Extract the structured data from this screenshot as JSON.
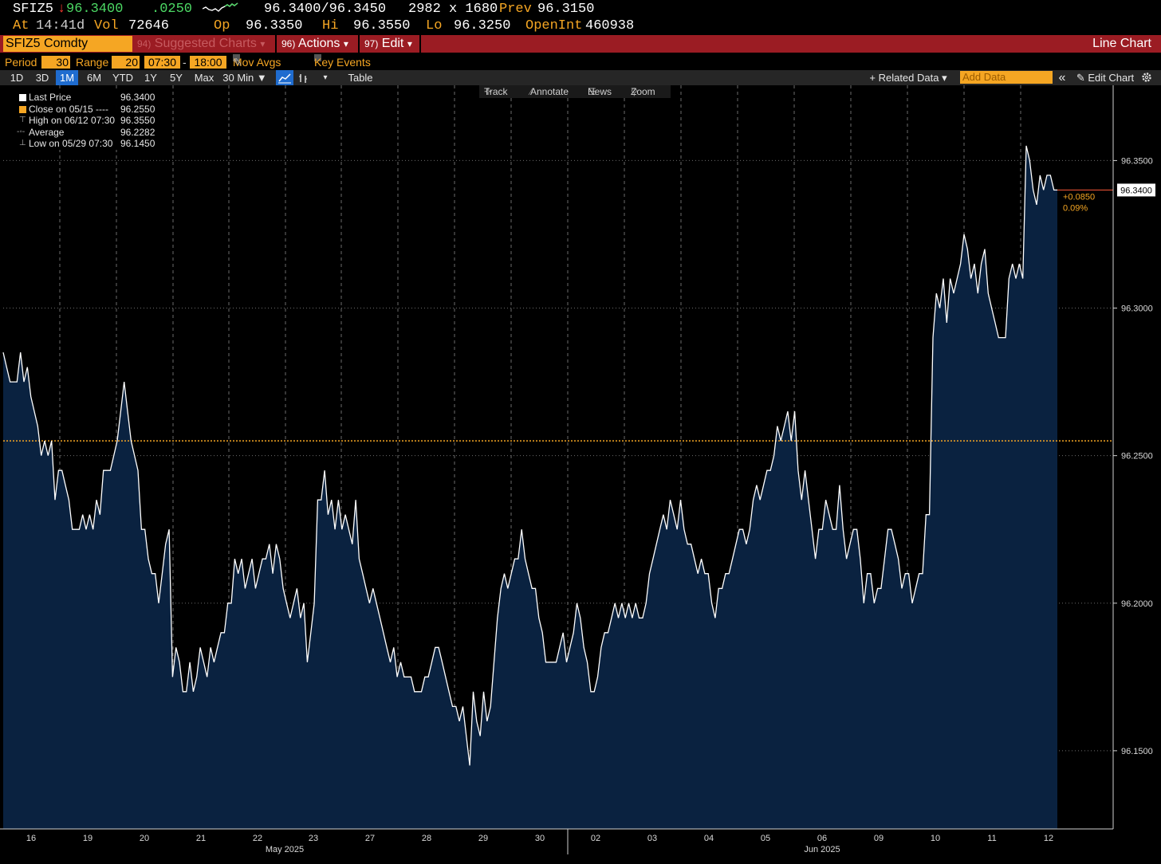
{
  "quote": {
    "ticker": "SFIZ5",
    "arrow": "↓",
    "last": "96.3400",
    "change": ".0250",
    "bid_ask": "96.3400/96.3450",
    "size": "2982 x 1680",
    "prev_label": "Prev",
    "prev": "96.3150",
    "at_label": "At",
    "time": "14:41d",
    "vol_label": "Vol",
    "vol": "72646",
    "op_label": "Op",
    "op": "96.3350",
    "hi_label": "Hi",
    "hi": "96.3550",
    "lo_label": "Lo",
    "lo": "96.3250",
    "oi_label": "OpenInt",
    "oi": "460938"
  },
  "menubar": {
    "security": "SFIZ5 Comdty",
    "suggested_num": "94)",
    "suggested": "Suggested Charts",
    "actions_num": "96)",
    "actions": "Actions",
    "edit_num": "97)",
    "edit": "Edit",
    "chart_type": "Line Chart"
  },
  "settings": {
    "period_label": "Period",
    "period": "30",
    "range_label": "Range",
    "range": "20",
    "start_time": "07:30",
    "dash": "-",
    "end_time": "18:00",
    "mov_avgs": "Mov Avgs",
    "key_events": "Key Events"
  },
  "toolbar": {
    "ranges": [
      "1D",
      "3D",
      "1M",
      "6M",
      "YTD",
      "1Y",
      "5Y",
      "Max"
    ],
    "active_range": "1M",
    "interval": "30 Min ▼",
    "table": "Table",
    "related_data": "+ Related Data ▾",
    "add_data": "Add Data",
    "collapse": "«",
    "edit_chart": "Edit Chart"
  },
  "chart_tools": {
    "track": "Track",
    "annotate": "Annotate",
    "news": "News",
    "zoom": "Zoom"
  },
  "legend": {
    "last_price_label": "Last Price",
    "last_price": "96.3400",
    "close_label": "Close on 05/15 ----",
    "close": "96.2550",
    "high_label": "High on 06/12 07:30",
    "high": "96.3550",
    "average_label": "Average",
    "average": "96.2282",
    "low_label": "Low on 05/29 07:30",
    "low": "96.1450"
  },
  "chart_data": {
    "type": "line",
    "y_ticks": [
      "96.3500",
      "96.3000",
      "96.2500",
      "96.2000",
      "96.1500"
    ],
    "ylim": [
      96.1235,
      96.3755
    ],
    "reference_close": 96.255,
    "last_value_label": "96.3400",
    "change_label": "+0.0850",
    "change_pct_label": "0.09%",
    "x_day_labels": [
      "16",
      "19",
      "20",
      "21",
      "22",
      "23",
      "27",
      "28",
      "29",
      "30",
      "02",
      "03",
      "04",
      "05",
      "06",
      "09",
      "10",
      "11",
      "12"
    ],
    "month_labels": [
      "May 2025",
      "Jun 2025"
    ],
    "colors": {
      "line": "#ffffff",
      "fill": "#0a2240",
      "reference": "#f5a623",
      "grid": "#6b6b6b"
    },
    "series": [
      {
        "values": [
          96.285,
          96.28,
          96.275,
          96.275,
          96.275,
          96.285,
          96.275,
          96.28,
          96.27,
          96.265,
          96.26,
          96.25,
          96.255,
          96.25,
          96.255,
          96.235,
          96.245,
          96.245,
          96.24,
          96.235,
          96.225,
          96.225,
          96.225,
          96.23,
          96.225,
          96.23,
          96.225,
          96.235,
          96.23,
          96.245,
          96.245,
          96.245,
          96.25,
          96.255,
          96.265,
          96.275,
          96.265,
          96.255,
          96.25,
          96.245,
          96.225,
          96.225,
          96.215,
          96.21,
          96.21,
          96.2,
          96.21,
          96.22,
          96.225,
          96.175,
          96.185,
          96.18,
          96.17,
          96.17,
          96.18,
          96.17,
          96.175,
          96.185,
          96.18,
          96.175,
          96.185,
          96.18,
          96.185,
          96.19,
          96.19,
          96.2,
          96.2,
          96.215,
          96.21,
          96.215,
          96.205,
          96.21,
          96.215,
          96.205,
          96.21,
          96.215,
          96.215,
          96.22,
          96.21,
          96.22,
          96.215,
          96.205,
          96.2,
          96.195,
          96.2,
          96.205,
          96.195,
          96.2,
          96.18,
          96.19,
          96.2,
          96.235,
          96.235,
          96.245,
          96.23,
          96.235,
          96.225,
          96.235,
          96.225,
          96.23,
          96.225,
          96.22,
          96.235,
          96.215,
          96.21,
          96.205,
          96.2,
          96.205,
          96.2,
          96.195,
          96.19,
          96.185,
          96.18,
          96.185,
          96.175,
          96.18,
          96.175,
          96.175,
          96.175,
          96.17,
          96.17,
          96.17,
          96.175,
          96.175,
          96.18,
          96.185,
          96.185,
          96.18,
          96.175,
          96.17,
          96.165,
          96.165,
          96.16,
          96.165,
          96.155,
          96.145,
          96.17,
          96.16,
          96.155,
          96.17,
          96.16,
          96.165,
          96.18,
          96.195,
          96.205,
          96.21,
          96.205,
          96.21,
          96.215,
          96.215,
          96.225,
          96.215,
          96.21,
          96.205,
          96.205,
          96.195,
          96.19,
          96.18,
          96.18,
          96.18,
          96.18,
          96.185,
          96.19,
          96.18,
          96.185,
          96.19,
          96.2,
          96.195,
          96.185,
          96.18,
          96.17,
          96.17,
          96.175,
          96.185,
          96.19,
          96.19,
          96.195,
          96.2,
          96.195,
          96.2,
          96.195,
          96.2,
          96.195,
          96.2,
          96.195,
          96.195,
          96.2,
          96.21,
          96.215,
          96.22,
          96.225,
          96.23,
          96.225,
          96.235,
          96.23,
          96.225,
          96.235,
          96.225,
          96.22,
          96.22,
          96.215,
          96.21,
          96.215,
          96.21,
          96.21,
          96.2,
          96.195,
          96.205,
          96.205,
          96.21,
          96.21,
          96.215,
          96.22,
          96.225,
          96.225,
          96.22,
          96.225,
          96.235,
          96.24,
          96.235,
          96.24,
          96.245,
          96.245,
          96.25,
          96.26,
          96.255,
          96.26,
          96.265,
          96.255,
          96.265,
          96.245,
          96.235,
          96.245,
          96.235,
          96.225,
          96.215,
          96.225,
          96.225,
          96.235,
          96.23,
          96.225,
          96.225,
          96.24,
          96.225,
          96.215,
          96.22,
          96.225,
          96.225,
          96.215,
          96.2,
          96.21,
          96.21,
          96.2,
          96.205,
          96.205,
          96.215,
          96.225,
          96.225,
          96.22,
          96.215,
          96.205,
          96.21,
          96.21,
          96.2,
          96.205,
          96.21,
          96.21,
          96.23,
          96.23,
          96.29,
          96.305,
          96.3,
          96.31,
          96.295,
          96.31,
          96.305,
          96.31,
          96.315,
          96.325,
          96.32,
          96.31,
          96.315,
          96.305,
          96.315,
          96.32,
          96.305,
          96.3,
          96.295,
          96.29,
          96.29,
          96.29,
          96.31,
          96.315,
          96.31,
          96.315,
          96.31,
          96.355,
          96.35,
          96.34,
          96.335,
          96.345,
          96.34,
          96.345,
          96.345,
          96.34,
          96.34
        ]
      }
    ]
  }
}
